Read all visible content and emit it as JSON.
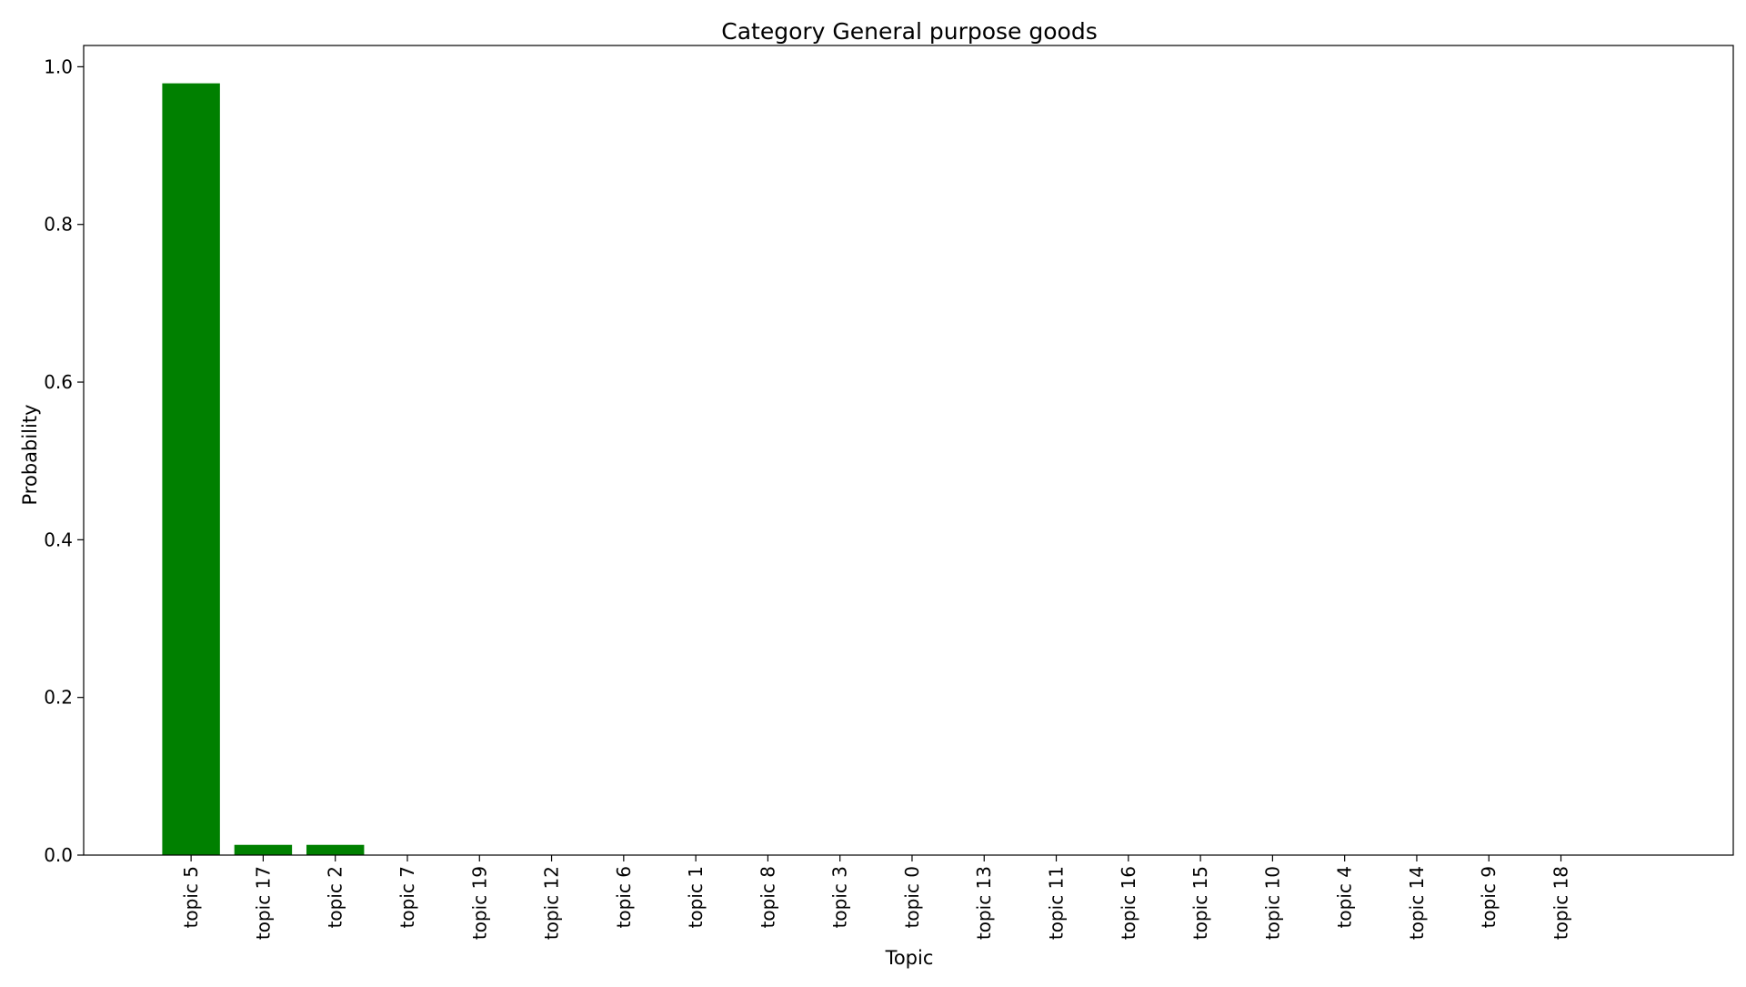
{
  "chart_data": {
    "type": "bar",
    "title": "Category General purpose goods",
    "xlabel": "Topic",
    "ylabel": "Probability",
    "categories": [
      "topic 5",
      "topic 17",
      "topic 2",
      "topic 7",
      "topic 19",
      "topic 12",
      "topic 6",
      "topic 1",
      "topic 8",
      "topic 3",
      "topic 0",
      "topic 13",
      "topic 11",
      "topic 16",
      "topic 15",
      "topic 10",
      "topic 4",
      "topic 14",
      "topic 9",
      "topic 18"
    ],
    "values": [
      0.979,
      0.013,
      0.013,
      0.0,
      0.0,
      0.0,
      0.0,
      0.0,
      0.0,
      0.0,
      0.0,
      0.0,
      0.0,
      0.0,
      0.0,
      0.0,
      0.0,
      0.0,
      0.0,
      0.0
    ],
    "ylim": [
      0,
      1.027
    ],
    "yticks": [
      0.0,
      0.2,
      0.4,
      0.6,
      0.8,
      1.0
    ],
    "ytick_labels": [
      "0.0",
      "0.2",
      "0.4",
      "0.6",
      "0.8",
      "1.0"
    ],
    "bar_color": "#008000",
    "grid": false,
    "legend": "none"
  }
}
